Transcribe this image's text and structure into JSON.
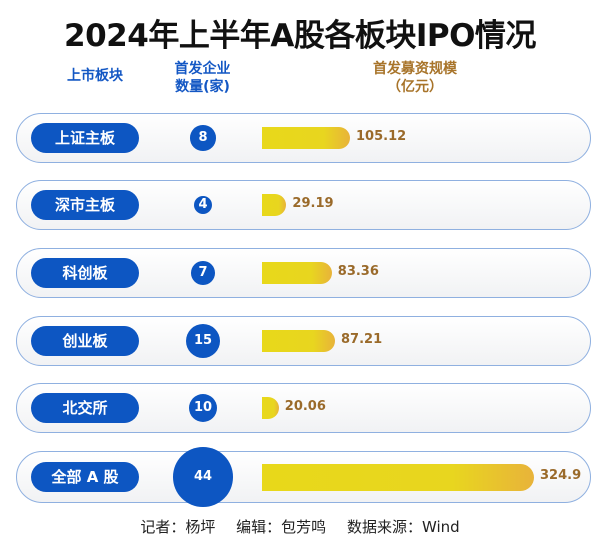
{
  "chart_data": {
    "type": "bar",
    "title": "2024年上半年A股各板块IPO情况",
    "columns": [
      "上市板块",
      "首发企业\n数量(家)",
      "首发募资规模\n（亿元）"
    ],
    "categories": [
      "上证主板",
      "深市主板",
      "科创板",
      "创业板",
      "北交所",
      "全部 A 股"
    ],
    "series": [
      {
        "name": "首发企业数量(家)",
        "values": [
          8,
          4,
          7,
          15,
          10,
          44
        ]
      },
      {
        "name": "首发募资规模（亿元）",
        "values": [
          105.12,
          29.19,
          83.36,
          87.21,
          20.06,
          324.9
        ]
      }
    ],
    "value_labels": [
      "105.12",
      "29.19",
      "83.36",
      "87.21",
      "20.06",
      "324.9"
    ],
    "colors": {
      "blue": "#0d56c2",
      "bar": "#e8d81a",
      "bar_end": "#e8b33a",
      "value_text": "#9a6a2a"
    }
  },
  "header": {
    "col1": "上市板块",
    "col2_line1": "首发企业",
    "col2_line2": "数量(家)",
    "col3_line1": "首发募资规模",
    "col3_line2": "（亿元）"
  },
  "footer": {
    "reporter": "记者：杨坪",
    "editor": "编辑：包芳鸣",
    "source": "数据来源：Wind"
  }
}
